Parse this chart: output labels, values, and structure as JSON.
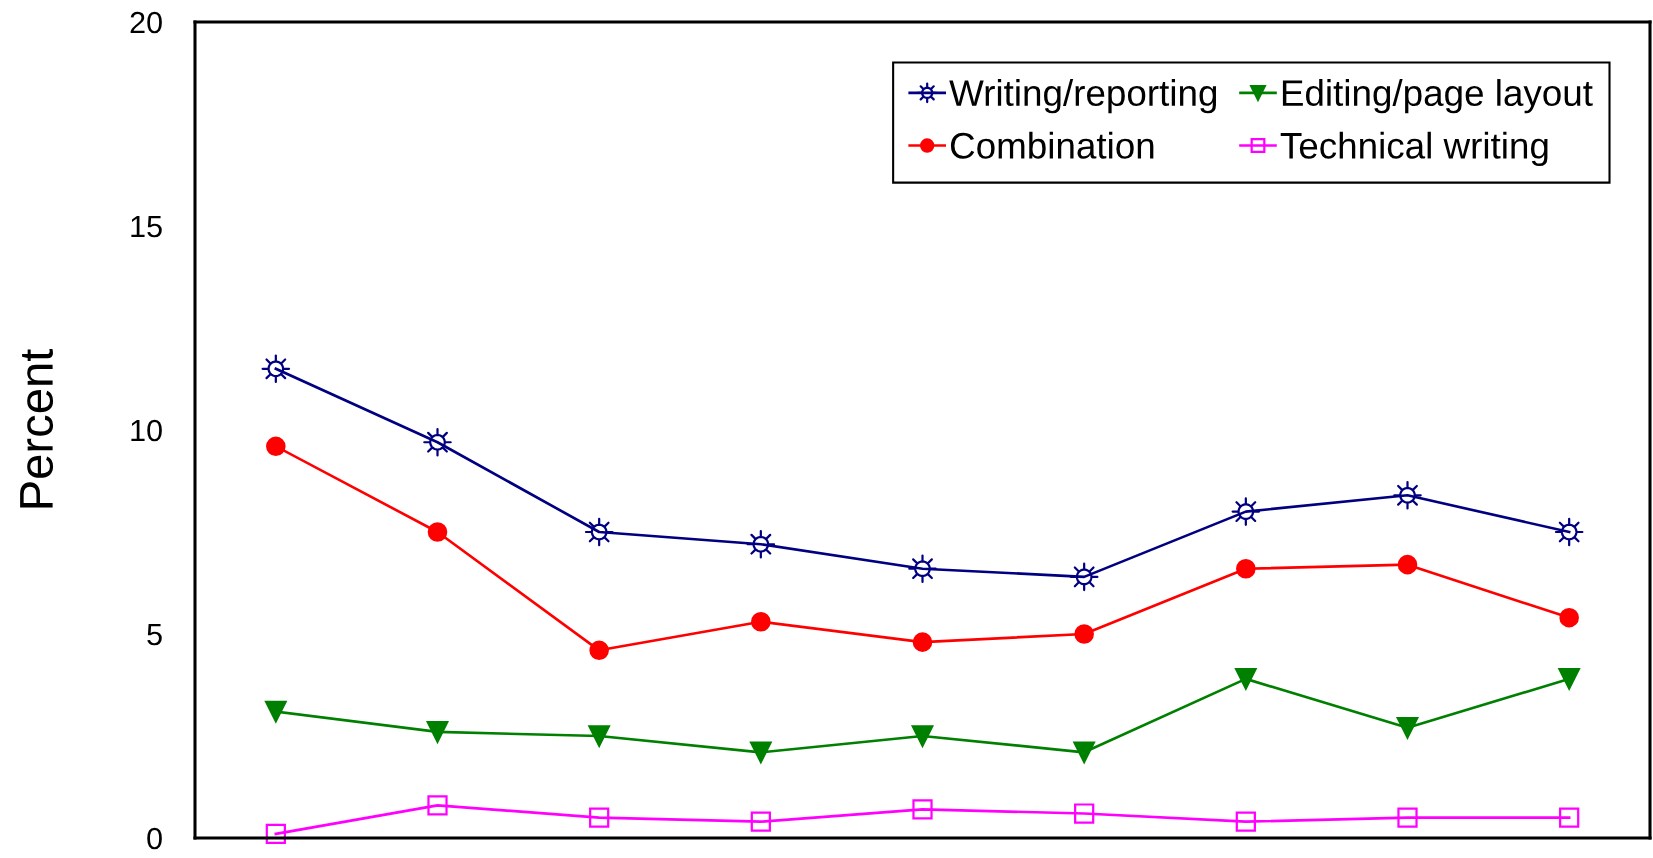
{
  "chart_data": {
    "type": "line",
    "ylabel": "Percent",
    "categories": [
      null,
      null,
      null,
      null,
      null,
      null,
      null,
      null,
      null
    ],
    "series": [
      {
        "name": "Writing/reporting",
        "color": "#000080",
        "marker": "star",
        "values": [
          11.5,
          9.7,
          7.5,
          7.2,
          6.6,
          6.4,
          8.0,
          8.4,
          7.5
        ]
      },
      {
        "name": "Combination",
        "color": "#ff0000",
        "marker": "circle",
        "values": [
          9.6,
          7.5,
          4.6,
          5.3,
          4.8,
          5.0,
          6.6,
          6.7,
          5.4
        ]
      },
      {
        "name": "Editing/page layout",
        "color": "#008000",
        "marker": "triangle",
        "values": [
          3.1,
          2.6,
          2.5,
          2.1,
          2.5,
          2.1,
          3.9,
          2.7,
          3.9
        ]
      },
      {
        "name": "Technical writing",
        "color": "#ff00ff",
        "marker": "square",
        "values": [
          0.1,
          0.8,
          0.5,
          0.4,
          0.7,
          0.6,
          0.4,
          0.5,
          0.5
        ]
      }
    ],
    "ylim": [
      0,
      20
    ],
    "yticks": [
      0,
      5,
      10,
      15,
      20
    ],
    "tick_labels": "y",
    "grid": false,
    "legend": "top right",
    "line_style": "solid"
  }
}
